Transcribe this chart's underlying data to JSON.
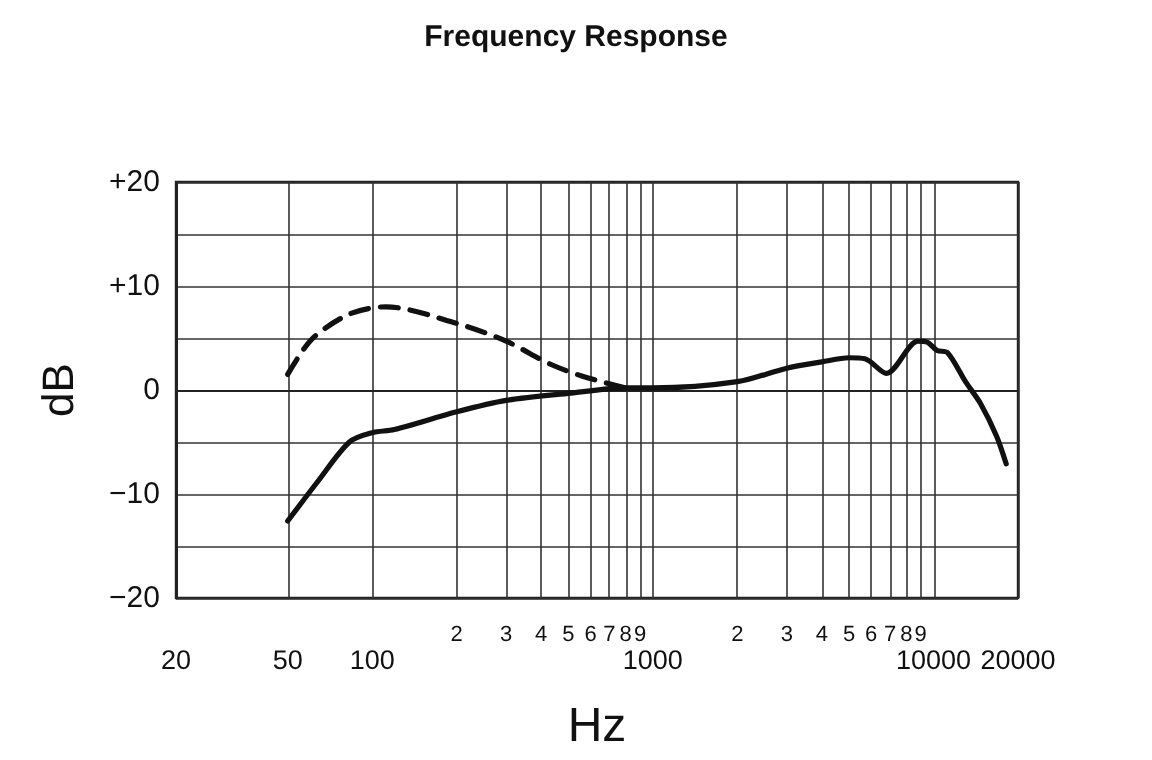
{
  "chart_data": {
    "type": "line",
    "title": "Frequency Response",
    "xlabel": "Hz",
    "ylabel": "dB",
    "log": "x",
    "grid": true,
    "xlim": [
      20,
      20000
    ],
    "xticks": [
      20,
      50,
      100,
      {
        "value": 200,
        "label": null
      },
      {
        "value": 300,
        "label": null
      },
      {
        "value": 400,
        "label": null
      },
      {
        "value": 500,
        "label": null
      },
      {
        "value": 600,
        "label": null
      },
      {
        "value": 700,
        "label": null
      },
      {
        "value": 800,
        "label": null
      },
      {
        "value": 900,
        "label": null
      },
      1000,
      {
        "value": 2000,
        "label": null
      },
      {
        "value": 3000,
        "label": null
      },
      {
        "value": 4000,
        "label": null
      },
      {
        "value": 5000,
        "label": null
      },
      {
        "value": 6000,
        "label": null
      },
      {
        "value": 7000,
        "label": null
      },
      {
        "value": 8000,
        "label": null
      },
      {
        "value": 9000,
        "label": null
      },
      10000,
      20000
    ],
    "ylim": [
      -20,
      20
    ],
    "yticks": [
      {
        "value": -20,
        "label": "−20"
      },
      {
        "value": -15,
        "label": null
      },
      {
        "value": -10,
        "label": "−10"
      },
      {
        "value": -5,
        "label": null
      },
      0,
      {
        "value": 5,
        "label": null
      },
      {
        "value": 10,
        "label": "+10"
      },
      {
        "value": 15,
        "label": null
      },
      {
        "value": 20,
        "label": "+20"
      }
    ],
    "annotations": [
      "2",
      "3",
      "4",
      "5",
      "6",
      "7",
      "8",
      "9",
      "2",
      "3",
      "4",
      "5",
      "6",
      "7",
      "8",
      "9"
    ],
    "series": [
      {
        "color": "#111111",
        "line_style": "solid",
        "x": [
          50,
          64,
          83,
          100,
          120,
          200,
          300,
          510,
          800,
          1000,
          2000,
          3000,
          4000,
          5000,
          5700,
          6800,
          8800,
          9500,
          10300,
          11200,
          13000,
          14700,
          16750,
          18150
        ],
        "values": [
          -12.6,
          -8.8,
          -5.0,
          -4.1,
          -3.8,
          -2.1,
          -1.0,
          -0.3,
          0.2,
          0.2,
          0.8,
          2.1,
          2.7,
          3.1,
          3.0,
          1.6,
          4.7,
          4.6,
          3.8,
          3.6,
          0.8,
          -1.3,
          -4.4,
          -7.1
        ]
      },
      {
        "color": "#111111",
        "line_style": "dashed",
        "x": [
          50,
          61,
          83,
          112,
          200,
          300,
          430,
          565,
          800
        ],
        "values": [
          1.5,
          4.9,
          7.3,
          8.0,
          6.4,
          4.7,
          2.5,
          1.3,
          0.2
        ]
      }
    ]
  }
}
